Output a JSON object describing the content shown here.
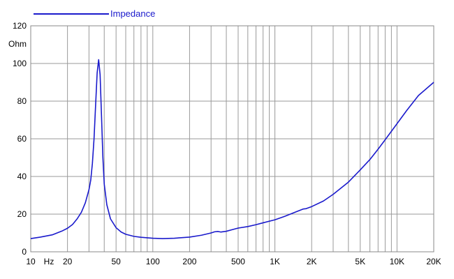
{
  "chart_data": {
    "type": "line",
    "x_scale": "log",
    "xlim": [
      10,
      20000
    ],
    "ylim": [
      0,
      120
    ],
    "grid": true,
    "legend_placement": "top-left",
    "ylabel": "Ohm",
    "xlabel": "Hz",
    "x_ticks": [
      {
        "value": 10,
        "label": "10"
      },
      {
        "value": 20,
        "label": "20"
      },
      {
        "value": 50,
        "label": "50"
      },
      {
        "value": 100,
        "label": "100"
      },
      {
        "value": 200,
        "label": "200"
      },
      {
        "value": 500,
        "label": "500"
      },
      {
        "value": 1000,
        "label": "1K"
      },
      {
        "value": 2000,
        "label": "2K"
      },
      {
        "value": 5000,
        "label": "5K"
      },
      {
        "value": 10000,
        "label": "10K"
      },
      {
        "value": 20000,
        "label": "20K"
      }
    ],
    "y_ticks": [
      0,
      20,
      40,
      60,
      80,
      100,
      120
    ],
    "series": [
      {
        "name": "Impedance",
        "color": "#1a1acc",
        "x": [
          10,
          12,
          15,
          18,
          20,
          22,
          24,
          26,
          28,
          30,
          31,
          32,
          33,
          34,
          35,
          36,
          37,
          38,
          39,
          40,
          42,
          45,
          50,
          55,
          60,
          70,
          80,
          100,
          120,
          150,
          200,
          250,
          300,
          320,
          340,
          360,
          400,
          450,
          500,
          600,
          700,
          800,
          1000,
          1200,
          1500,
          1700,
          1800,
          2000,
          2500,
          3000,
          4000,
          5000,
          6000,
          7000,
          8000,
          10000,
          12000,
          15000,
          20000
        ],
        "y": [
          7,
          7.8,
          9,
          11,
          12.5,
          14.5,
          17.5,
          21,
          26,
          33,
          38,
          47,
          60,
          78,
          95,
          102,
          94,
          72,
          50,
          36,
          25,
          17.5,
          12.8,
          10.5,
          9.3,
          8.2,
          7.7,
          7.2,
          7,
          7.2,
          7.8,
          8.8,
          10,
          10.6,
          10.8,
          10.5,
          10.9,
          11.8,
          12.6,
          13.4,
          14.4,
          15.4,
          17,
          18.8,
          21.3,
          22.7,
          22.9,
          24,
          27,
          30.5,
          37,
          43.5,
          49,
          54.5,
          59.5,
          68,
          75,
          83,
          90
        ]
      }
    ]
  }
}
